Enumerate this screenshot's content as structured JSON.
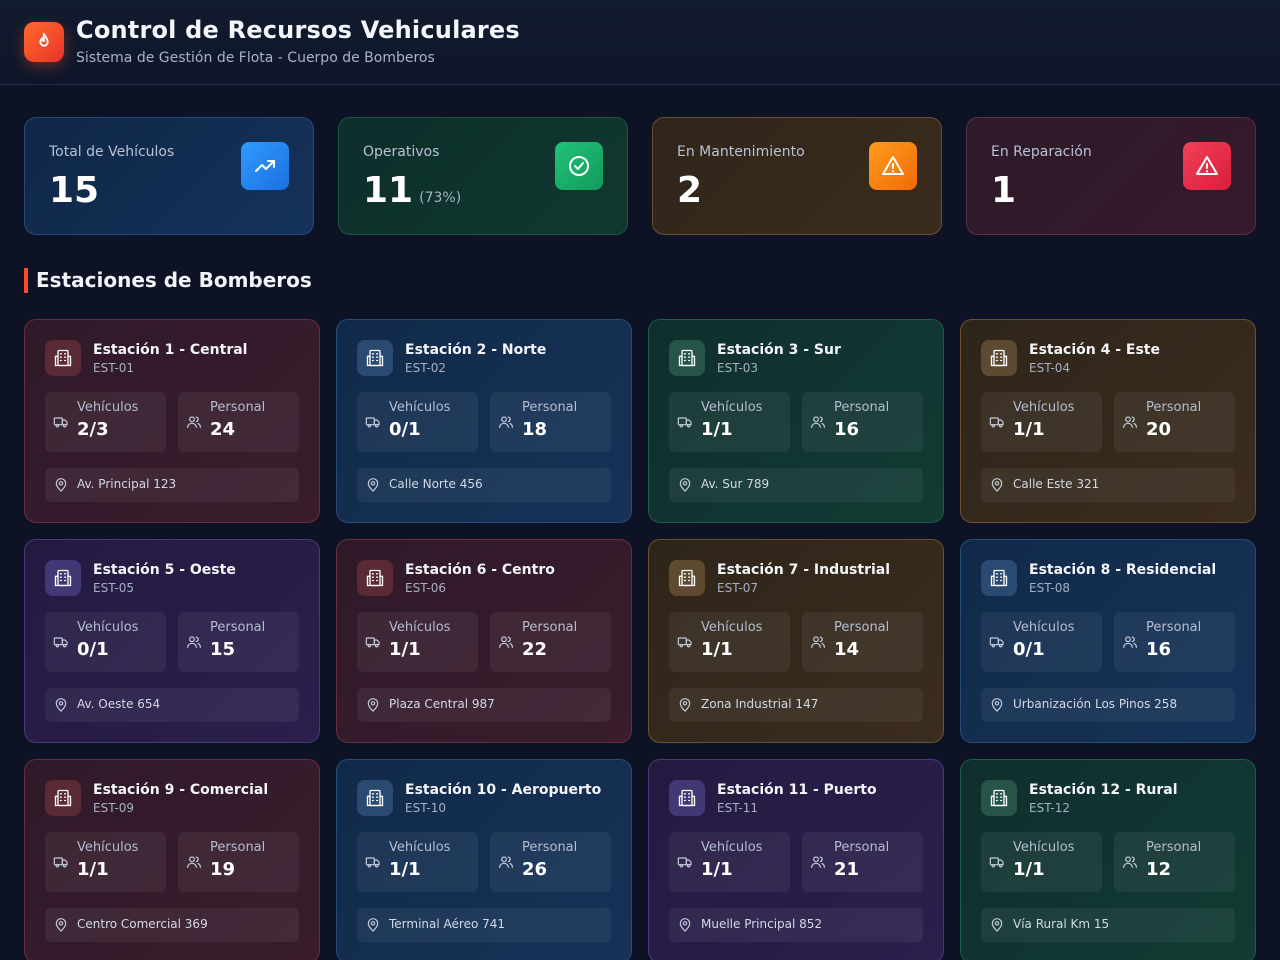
{
  "header": {
    "title": "Control de Recursos Vehiculares",
    "subtitle": "Sistema de Gestión de Flota - Cuerpo de Bomberos",
    "logo_icon": "flame-icon"
  },
  "stats": {
    "total": {
      "label": "Total de Vehículos",
      "value": "15",
      "icon": "trending-up-icon"
    },
    "operativos": {
      "label": "Operativos",
      "value": "11",
      "percent": "(73%)",
      "icon": "check-circle-icon"
    },
    "mantenimiento": {
      "label": "En Mantenimiento",
      "value": "2",
      "icon": "warning-icon"
    },
    "reparacion": {
      "label": "En Reparación",
      "value": "1",
      "icon": "warning-icon"
    }
  },
  "section_title": "Estaciones de Bomberos",
  "labels": {
    "vehicles": "Vehículos",
    "staff": "Personal"
  },
  "stations": [
    {
      "name": "Estación 1 - Central",
      "code": "EST-01",
      "vehicles": "2/3",
      "staff": "24",
      "address": "Av. Principal 123",
      "theme": "red"
    },
    {
      "name": "Estación 2 - Norte",
      "code": "EST-02",
      "vehicles": "0/1",
      "staff": "18",
      "address": "Calle Norte 456",
      "theme": "blue"
    },
    {
      "name": "Estación 3 - Sur",
      "code": "EST-03",
      "vehicles": "1/1",
      "staff": "16",
      "address": "Av. Sur 789",
      "theme": "green"
    },
    {
      "name": "Estación 4 - Este",
      "code": "EST-04",
      "vehicles": "1/1",
      "staff": "20",
      "address": "Calle Este 321",
      "theme": "amber"
    },
    {
      "name": "Estación 5 - Oeste",
      "code": "EST-05",
      "vehicles": "0/1",
      "staff": "15",
      "address": "Av. Oeste 654",
      "theme": "purple"
    },
    {
      "name": "Estación 6 - Centro",
      "code": "EST-06",
      "vehicles": "1/1",
      "staff": "22",
      "address": "Plaza Central 987",
      "theme": "red"
    },
    {
      "name": "Estación 7 - Industrial",
      "code": "EST-07",
      "vehicles": "1/1",
      "staff": "14",
      "address": "Zona Industrial 147",
      "theme": "amber"
    },
    {
      "name": "Estación 8 - Residencial",
      "code": "EST-08",
      "vehicles": "0/1",
      "staff": "16",
      "address": "Urbanización Los Pinos 258",
      "theme": "blue"
    },
    {
      "name": "Estación 9 - Comercial",
      "code": "EST-09",
      "vehicles": "1/1",
      "staff": "19",
      "address": "Centro Comercial 369",
      "theme": "red"
    },
    {
      "name": "Estación 10 - Aeropuerto",
      "code": "EST-10",
      "vehicles": "1/1",
      "staff": "26",
      "address": "Terminal Aéreo 741",
      "theme": "blue"
    },
    {
      "name": "Estación 11 - Puerto",
      "code": "EST-11",
      "vehicles": "1/1",
      "staff": "21",
      "address": "Muelle Principal 852",
      "theme": "purple"
    },
    {
      "name": "Estación 12 - Rural",
      "code": "EST-12",
      "vehicles": "1/1",
      "staff": "12",
      "address": "Vía Rural Km 15",
      "theme": "green"
    }
  ]
}
